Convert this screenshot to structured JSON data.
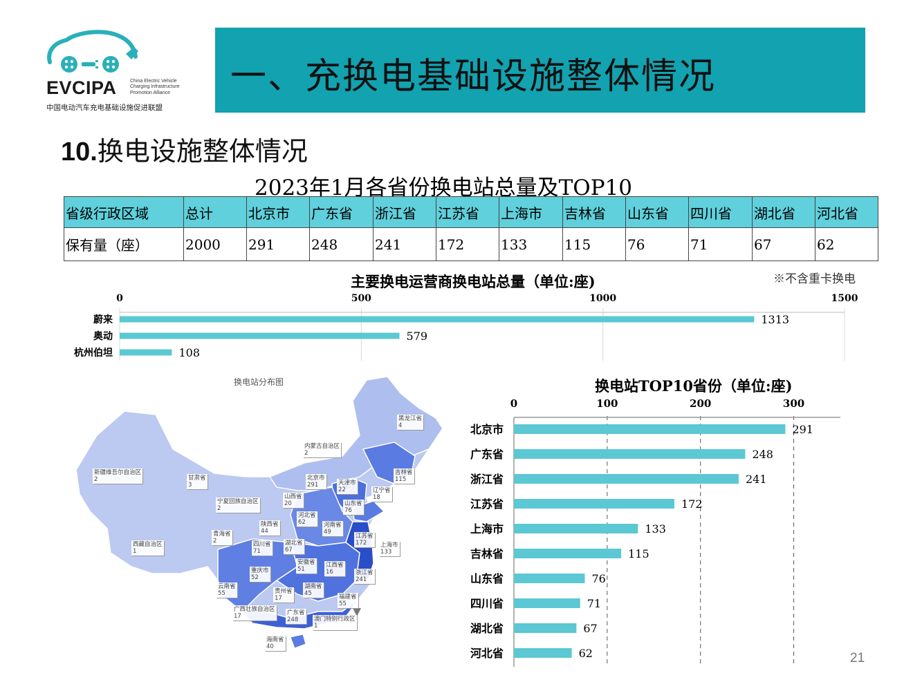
{
  "logo": {
    "acronym": "EVCIPA",
    "english_lines": [
      "China Electric Vehicle",
      "Charging Infrastructure",
      "Promotion Alliance"
    ],
    "chinese_name": "中国电动汽车充电基础设施促进联盟"
  },
  "banner": {
    "title": "一、充换电基础设施整体情况"
  },
  "section": {
    "number": "10.",
    "title": "换电设施整体情况"
  },
  "table": {
    "caption": "2023年1月各省份换电站总量及TOP10",
    "header": [
      "省级行政区域",
      "总计",
      "北京市",
      "广东省",
      "浙江省",
      "江苏省",
      "上海市",
      "吉林省",
      "山东省",
      "四川省",
      "湖北省",
      "河北省"
    ],
    "row": [
      "保有量（座）",
      "2000",
      "291",
      "248",
      "241",
      "172",
      "133",
      "115",
      "76",
      "71",
      "67",
      "62"
    ]
  },
  "note": "※不含重卡换电",
  "map": {
    "title": "换电站分布图",
    "labels": [
      {
        "name": "黑龙江省",
        "value": "4"
      },
      {
        "name": "内蒙古自治区",
        "value": "2"
      },
      {
        "name": "新疆维吾尔自治区",
        "value": "2"
      },
      {
        "name": "甘肃省",
        "value": "3"
      },
      {
        "name": "宁夏回族自治区",
        "value": "2"
      },
      {
        "name": "北京市",
        "value": "291"
      },
      {
        "name": "天津市",
        "value": "22"
      },
      {
        "name": "吉林省",
        "value": "115"
      },
      {
        "name": "辽宁省",
        "value": "18"
      },
      {
        "name": "山西省",
        "value": "20"
      },
      {
        "name": "山东省",
        "value": "76"
      },
      {
        "name": "河北省",
        "value": "62"
      },
      {
        "name": "陕西省",
        "value": "44"
      },
      {
        "name": "河南省",
        "value": "49"
      },
      {
        "name": "青海省",
        "value": "2"
      },
      {
        "name": "江苏省",
        "value": "172"
      },
      {
        "name": "上海市",
        "value": "133"
      },
      {
        "name": "西藏自治区",
        "value": "1"
      },
      {
        "name": "四川省",
        "value": "71"
      },
      {
        "name": "湖北省",
        "value": "67"
      },
      {
        "name": "安徽省",
        "value": "51"
      },
      {
        "name": "重庆市",
        "value": "52"
      },
      {
        "name": "江西省",
        "value": "16"
      },
      {
        "name": "浙江省",
        "value": "241"
      },
      {
        "name": "云南省",
        "value": "55"
      },
      {
        "name": "贵州省",
        "value": "17"
      },
      {
        "name": "湖南省",
        "value": "45"
      },
      {
        "name": "福建省",
        "value": "55"
      },
      {
        "name": "广西壮族自治区",
        "value": "17"
      },
      {
        "name": "广东省",
        "value": "248"
      },
      {
        "name": "澳门特别行政区",
        "value": "1"
      },
      {
        "name": "海南省",
        "value": "40"
      }
    ]
  },
  "chart_data": [
    {
      "type": "bar",
      "orientation": "horizontal",
      "title": "主要换电运营商换电站总量（单位:座)",
      "categories": [
        "蔚来",
        "奥动",
        "杭州伯坦"
      ],
      "values": [
        1313,
        579,
        108
      ],
      "xlim": [
        0,
        1500
      ],
      "x_ticks": [
        0,
        500,
        1000,
        1500
      ],
      "axis_position": "top",
      "grid": true,
      "color": "#5BC8D3"
    },
    {
      "type": "bar",
      "orientation": "horizontal",
      "title": "换电站TOP10省份（单位:座)",
      "categories": [
        "北京市",
        "广东省",
        "浙江省",
        "江苏省",
        "上海市",
        "吉林省",
        "山东省",
        "四川省",
        "湖北省",
        "河北省"
      ],
      "values": [
        291,
        248,
        241,
        172,
        133,
        115,
        76,
        71,
        67,
        62
      ],
      "xlim": [
        0,
        350
      ],
      "x_ticks": [
        0,
        100,
        200,
        300
      ],
      "axis_position": "top",
      "grid": true,
      "color": "#5BC8D3"
    }
  ],
  "page_number": "21"
}
